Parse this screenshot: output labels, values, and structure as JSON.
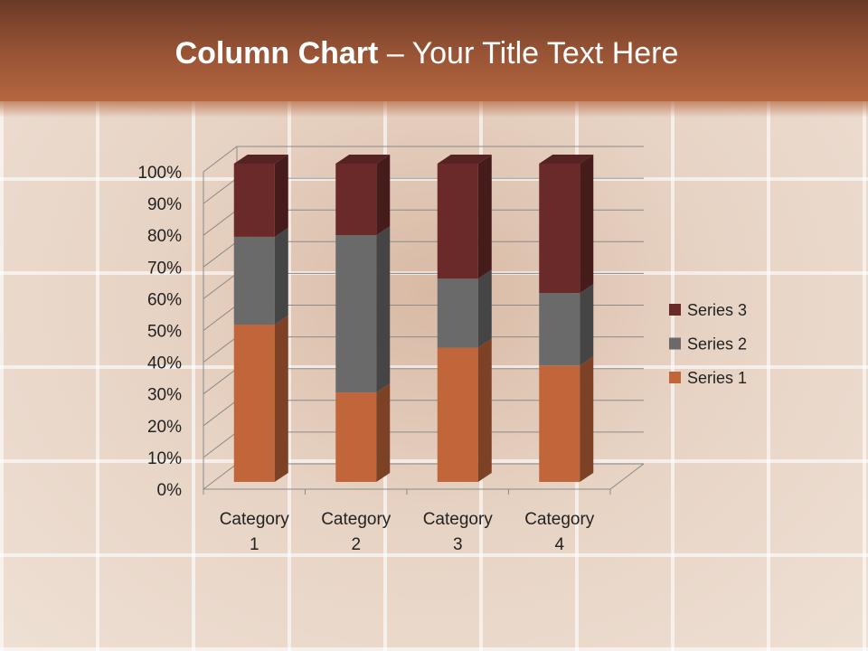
{
  "slide": {
    "title_bold": "Column Chart",
    "title_rest": " – Your Title Text Here"
  },
  "chart_data": {
    "type": "bar",
    "subtype": "3d-100%-stacked-column",
    "categories": [
      "Category 1",
      "Category 2",
      "Category 3",
      "Category 4"
    ],
    "series": [
      {
        "name": "Series 1",
        "values": [
          4.3,
          2.5,
          3.5,
          4.5
        ],
        "color": "#c0663a"
      },
      {
        "name": "Series 2",
        "values": [
          2.4,
          4.4,
          1.8,
          2.8
        ],
        "color": "#6a6a6a"
      },
      {
        "name": "Series 3",
        "values": [
          2,
          2,
          3,
          5
        ],
        "color": "#6b2a2a"
      }
    ],
    "yticks": [
      "0%",
      "10%",
      "20%",
      "30%",
      "40%",
      "50%",
      "60%",
      "70%",
      "80%",
      "90%",
      "100%"
    ],
    "ylim": [
      0,
      100
    ],
    "grid": true,
    "legend": "right"
  }
}
